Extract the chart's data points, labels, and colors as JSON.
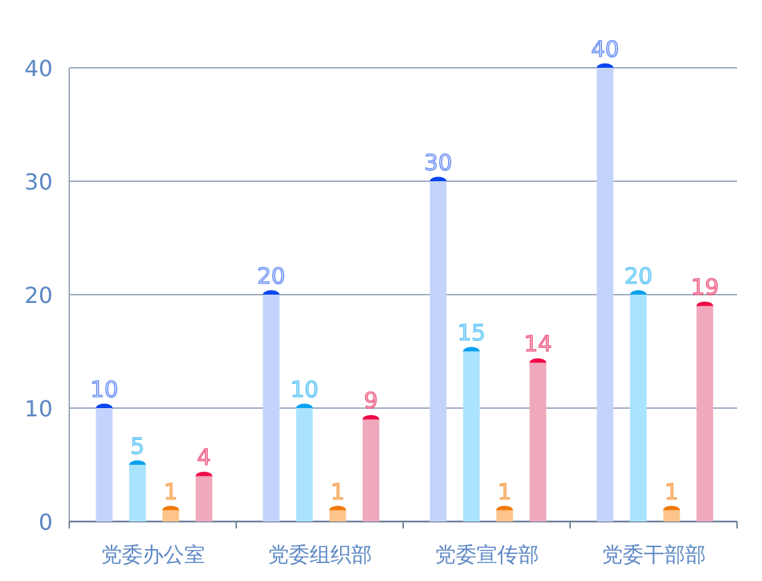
{
  "chart_data": {
    "type": "bar",
    "categories": [
      "党委办公室",
      "党委组织部",
      "党委宣传部",
      "党委干部部"
    ],
    "series": [
      {
        "color": "#c4d3fb",
        "values": [
          10,
          20,
          30,
          40
        ]
      },
      {
        "color": "#a9e3fd",
        "values": [
          5,
          10,
          15,
          20
        ]
      },
      {
        "color": "#fcc48a",
        "values": [
          1,
          1,
          1,
          1
        ]
      },
      {
        "color": "#f0a8bc",
        "values": [
          4,
          9,
          14,
          19
        ]
      }
    ],
    "ylim": [
      0,
      40
    ],
    "yticks": [
      0,
      10,
      20,
      30,
      40
    ],
    "grid": "y",
    "data_labels": true
  }
}
